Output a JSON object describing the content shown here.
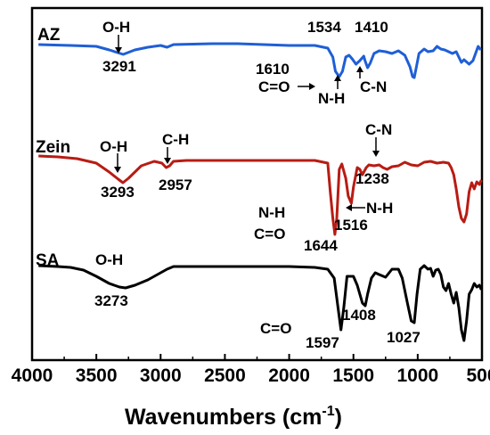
{
  "chart_data": {
    "type": "line",
    "title": "",
    "xlabel": "Wavenumbers (cm",
    "xlabel_sup": "-1",
    "ylabel": "",
    "xlim": [
      4000,
      500
    ],
    "x_reversed": true,
    "grid": false,
    "xticks": [
      "4000",
      "3500",
      "3000",
      "2500",
      "2000",
      "1500",
      "1000",
      "500"
    ],
    "series": [
      {
        "name": "AZ",
        "color": "#1f5fd6",
        "points": [
          [
            3950,
            50
          ],
          [
            3700,
            51
          ],
          [
            3500,
            52
          ],
          [
            3400,
            56
          ],
          [
            3291,
            61
          ],
          [
            3200,
            56
          ],
          [
            3100,
            53
          ],
          [
            3000,
            51
          ],
          [
            2950,
            53
          ],
          [
            2900,
            50
          ],
          [
            2600,
            49
          ],
          [
            2400,
            49
          ],
          [
            2200,
            50
          ],
          [
            2000,
            51
          ],
          [
            1800,
            51
          ],
          [
            1700,
            54
          ],
          [
            1660,
            64
          ],
          [
            1640,
            80
          ],
          [
            1610,
            86
          ],
          [
            1585,
            80
          ],
          [
            1560,
            64
          ],
          [
            1534,
            62
          ],
          [
            1510,
            66
          ],
          [
            1480,
            72
          ],
          [
            1450,
            68
          ],
          [
            1420,
            63
          ],
          [
            1410,
            68
          ],
          [
            1390,
            76
          ],
          [
            1370,
            71
          ],
          [
            1340,
            60
          ],
          [
            1300,
            57
          ],
          [
            1250,
            58
          ],
          [
            1200,
            60
          ],
          [
            1150,
            57
          ],
          [
            1100,
            62
          ],
          [
            1060,
            75
          ],
          [
            1040,
            86
          ],
          [
            1027,
            87
          ],
          [
            1010,
            75
          ],
          [
            990,
            60
          ],
          [
            950,
            55
          ],
          [
            920,
            58
          ],
          [
            880,
            57
          ],
          [
            850,
            52
          ],
          [
            820,
            55
          ],
          [
            790,
            56
          ],
          [
            760,
            58
          ],
          [
            730,
            60
          ],
          [
            700,
            58
          ],
          [
            680,
            64
          ],
          [
            660,
            70
          ],
          [
            640,
            67
          ],
          [
            600,
            72
          ],
          [
            570,
            68
          ],
          [
            550,
            60
          ],
          [
            530,
            52
          ],
          [
            510,
            56
          ]
        ]
      },
      {
        "name": "Zein",
        "color": "#b81c14",
        "points": [
          [
            3950,
            175
          ],
          [
            3800,
            176
          ],
          [
            3650,
            178
          ],
          [
            3500,
            183
          ],
          [
            3400,
            193
          ],
          [
            3330,
            201
          ],
          [
            3293,
            205
          ],
          [
            3250,
            200
          ],
          [
            3150,
            186
          ],
          [
            3050,
            181
          ],
          [
            2990,
            183
          ],
          [
            2957,
            188
          ],
          [
            2930,
            186
          ],
          [
            2900,
            181
          ],
          [
            2800,
            180
          ],
          [
            2600,
            180
          ],
          [
            2400,
            180
          ],
          [
            2200,
            180
          ],
          [
            2000,
            180
          ],
          [
            1800,
            180
          ],
          [
            1700,
            183
          ],
          [
            1680,
            215
          ],
          [
            1660,
            245
          ],
          [
            1644,
            263
          ],
          [
            1630,
            245
          ],
          [
            1610,
            190
          ],
          [
            1590,
            184
          ],
          [
            1560,
            200
          ],
          [
            1540,
            220
          ],
          [
            1516,
            228
          ],
          [
            1500,
            210
          ],
          [
            1470,
            188
          ],
          [
            1450,
            190
          ],
          [
            1430,
            196
          ],
          [
            1400,
            188
          ],
          [
            1380,
            185
          ],
          [
            1340,
            186
          ],
          [
            1300,
            185
          ],
          [
            1270,
            188
          ],
          [
            1238,
            190
          ],
          [
            1200,
            187
          ],
          [
            1150,
            186
          ],
          [
            1100,
            182
          ],
          [
            1050,
            185
          ],
          [
            1000,
            186
          ],
          [
            950,
            182
          ],
          [
            900,
            181
          ],
          [
            850,
            183
          ],
          [
            800,
            182
          ],
          [
            760,
            183
          ],
          [
            740,
            188
          ],
          [
            720,
            196
          ],
          [
            700,
            212
          ],
          [
            680,
            232
          ],
          [
            660,
            245
          ],
          [
            640,
            249
          ],
          [
            620,
            240
          ],
          [
            600,
            215
          ],
          [
            580,
            205
          ],
          [
            560,
            212
          ],
          [
            540,
            204
          ],
          [
            520,
            207
          ],
          [
            505,
            202
          ]
        ]
      },
      {
        "name": "SA",
        "color": "#000000",
        "points": [
          [
            3950,
            298
          ],
          [
            3800,
            299
          ],
          [
            3700,
            300
          ],
          [
            3600,
            303
          ],
          [
            3500,
            310
          ],
          [
            3400,
            318
          ],
          [
            3320,
            322
          ],
          [
            3273,
            323
          ],
          [
            3200,
            320
          ],
          [
            3100,
            314
          ],
          [
            3000,
            306
          ],
          [
            2950,
            302
          ],
          [
            2900,
            299
          ],
          [
            2800,
            299
          ],
          [
            2600,
            299
          ],
          [
            2400,
            299
          ],
          [
            2200,
            299
          ],
          [
            2000,
            299
          ],
          [
            1800,
            300
          ],
          [
            1700,
            302
          ],
          [
            1650,
            312
          ],
          [
            1620,
            345
          ],
          [
            1597,
            370
          ],
          [
            1575,
            345
          ],
          [
            1550,
            310
          ],
          [
            1500,
            310
          ],
          [
            1470,
            320
          ],
          [
            1430,
            340
          ],
          [
            1408,
            343
          ],
          [
            1390,
            330
          ],
          [
            1360,
            312
          ],
          [
            1330,
            306
          ],
          [
            1300,
            308
          ],
          [
            1250,
            311
          ],
          [
            1200,
            302
          ],
          [
            1150,
            302
          ],
          [
            1120,
            312
          ],
          [
            1080,
            340
          ],
          [
            1050,
            360
          ],
          [
            1027,
            362
          ],
          [
            1005,
            330
          ],
          [
            980,
            302
          ],
          [
            950,
            298
          ],
          [
            920,
            302
          ],
          [
            900,
            301
          ],
          [
            880,
            310
          ],
          [
            860,
            303
          ],
          [
            840,
            302
          ],
          [
            820,
            308
          ],
          [
            800,
            322
          ],
          [
            780,
            326
          ],
          [
            760,
            318
          ],
          [
            740,
            330
          ],
          [
            720,
            340
          ],
          [
            700,
            328
          ],
          [
            680,
            345
          ],
          [
            660,
            370
          ],
          [
            640,
            382
          ],
          [
            620,
            360
          ],
          [
            600,
            330
          ],
          [
            580,
            325
          ],
          [
            560,
            318
          ],
          [
            540,
            322
          ],
          [
            520,
            320
          ],
          [
            505,
            325
          ]
        ]
      }
    ],
    "series_labels": [
      "AZ",
      "Zein",
      "SA"
    ],
    "annotations": {
      "az_oh": "O-H",
      "az_3291": "3291",
      "az_1534": "1534",
      "az_1410": "1410",
      "az_1610": "1610",
      "az_co": "C=O",
      "az_nh": "N-H",
      "az_cn": "C-N",
      "zein_oh": "O-H",
      "zein_ch": "C-H",
      "zein_cn": "C-N",
      "zein_3293": "3293",
      "zein_2957": "2957",
      "zein_1238": "1238",
      "zein_nh1": "N-H",
      "zein_nh2": "N-H",
      "zein_1516": "1516",
      "zein_co": "C=O",
      "zein_1644": "1644",
      "sa_oh": "O-H",
      "sa_3273": "3273",
      "sa_co": "C=O",
      "sa_1597": "1597",
      "sa_1408": "1408",
      "sa_1027": "1027"
    }
  }
}
